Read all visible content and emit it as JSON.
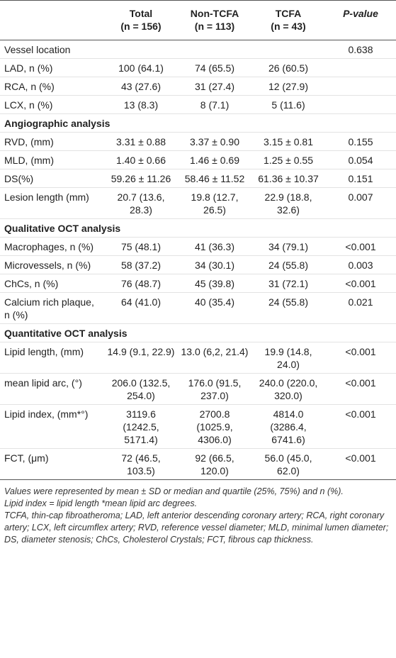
{
  "table": {
    "columns": [
      {
        "name": "Total",
        "n": "(n = 156)"
      },
      {
        "name": "Non-TCFA",
        "n": "(n = 113)"
      },
      {
        "name": "TCFA",
        "n": "(n = 43)"
      },
      {
        "name": "P-value"
      }
    ],
    "rows": [
      {
        "label": "Vessel location",
        "cells": [
          "",
          "",
          "",
          "0.638"
        ]
      },
      {
        "label": "LAD, n (%)",
        "cells": [
          "100 (64.1)",
          "74 (65.5)",
          "26 (60.5)",
          ""
        ]
      },
      {
        "label": "RCA, n (%)",
        "cells": [
          "43 (27.6)",
          "31 (27.4)",
          "12 (27.9)",
          ""
        ]
      },
      {
        "label": "LCX, n (%)",
        "cells": [
          "13 (8.3)",
          "8 (7.1)",
          "5 (11.6)",
          ""
        ]
      },
      {
        "section": "Angiographic analysis"
      },
      {
        "label": "RVD, (mm)",
        "cells": [
          "3.31 ± 0.88",
          "3.37 ± 0.90",
          "3.15 ± 0.81",
          "0.155"
        ]
      },
      {
        "label": "MLD, (mm)",
        "cells": [
          "1.40 ± 0.66",
          "1.46 ± 0.69",
          "1.25 ± 0.55",
          "0.054"
        ]
      },
      {
        "label": "DS(%)",
        "cells": [
          "59.26 ± 11.26",
          "58.46 ± 11.52",
          "61.36 ± 10.37",
          "0.151"
        ]
      },
      {
        "label": "Lesion length (mm)",
        "cells": [
          "20.7 (13.6, 28.3)",
          "19.8 (12.7, 26.5)",
          "22.9 (18.8, 32.6)",
          "0.007"
        ]
      },
      {
        "section": "Qualitative OCT analysis"
      },
      {
        "label": "Macrophages, n (%)",
        "cells": [
          "75 (48.1)",
          "41 (36.3)",
          "34 (79.1)",
          "<0.001"
        ]
      },
      {
        "label": "Microvessels, n (%)",
        "cells": [
          "58 (37.2)",
          "34 (30.1)",
          "24 (55.8)",
          "0.003"
        ]
      },
      {
        "label": "ChCs, n (%)",
        "cells": [
          "76 (48.7)",
          "45 (39.8)",
          "31 (72.1)",
          "<0.001"
        ]
      },
      {
        "label": "Calcium rich plaque, n (%)",
        "cells": [
          "64 (41.0)",
          "40 (35.4)",
          "24 (55.8)",
          "0.021"
        ]
      },
      {
        "section": "Quantitative OCT analysis"
      },
      {
        "label": "Lipid length, (mm)",
        "cells": [
          "14.9 (9.1, 22.9)",
          "13.0 (6,2, 21.4)",
          "19.9 (14.8, 24.0)",
          "<0.001"
        ]
      },
      {
        "label": "mean lipid arc, (°)",
        "cells": [
          "206.0 (132.5, 254.0)",
          "176.0 (91.5, 237.0)",
          "240.0 (220.0, 320.0)",
          "<0.001"
        ]
      },
      {
        "label": "Lipid index, (mm*°)",
        "cells": [
          "3119.6 (1242.5, 5171.4)",
          "2700.8 (1025.9, 4306.0)",
          "4814.0 (3286.4, 6741.6)",
          "<0.001"
        ]
      },
      {
        "label": "FCT, (μm)",
        "cells": [
          "72 (46.5, 103.5)",
          "92 (66.5, 120.0)",
          "56.0 (45.0, 62.0)",
          "<0.001"
        ]
      }
    ]
  },
  "notes": [
    "Values were represented by mean ± SD or median and quartile (25%, 75%) and n (%).",
    "Lipid index = lipid length *mean lipid arc degrees.",
    "TCFA, thin-cap fibroatheroma; LAD, left anterior descending coronary artery; RCA, right coronary artery; LCX, left circumflex artery; RVD, reference vessel diameter; MLD, minimal lumen diameter; DS, diameter stenosis; ChCs, Cholesterol Crystals; FCT, fibrous cap thickness."
  ]
}
